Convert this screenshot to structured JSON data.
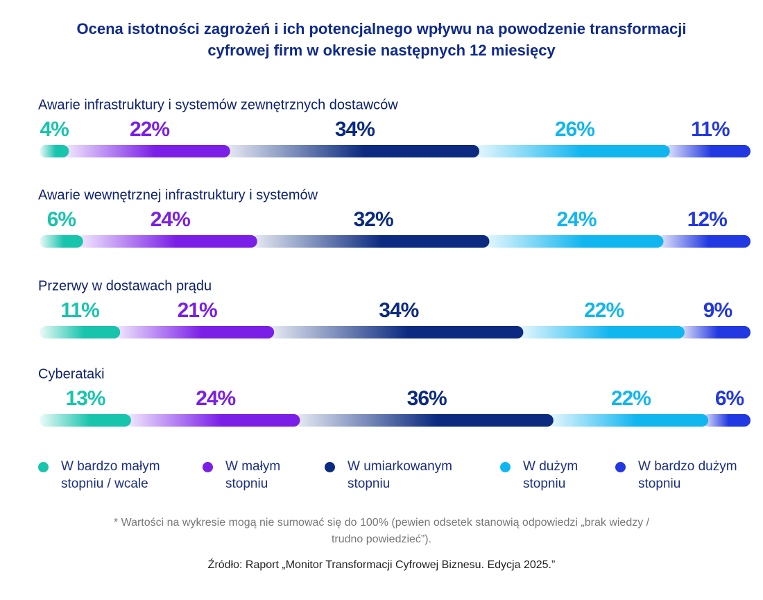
{
  "chart_data": {
    "type": "stacked-bar",
    "title": "Ocena istotności zagrożeń i ich potencjalnego wpływu na powodzenie transformacji cyfrowej firm w okresie następnych 12 miesięcy",
    "categories": [
      "Awarie infrastruktury i systemów zewnętrznych dostawców",
      "Awarie wewnętrznej infrastruktury i systemów",
      "Przerwy w dostawach prądu",
      "Cyberataki"
    ],
    "series": [
      {
        "name": "W bardzo małym stopniu / wcale",
        "color": "#19c4ad",
        "values": [
          4,
          6,
          11,
          13
        ],
        "value_labels": [
          "4%",
          "6%",
          "11%",
          "13%"
        ]
      },
      {
        "name": "W małym stopniu",
        "color": "#7b1fe6",
        "values": [
          22,
          24,
          21,
          24
        ],
        "value_labels": [
          "22%",
          "24%",
          "21%",
          "24%"
        ]
      },
      {
        "name": "W umiarkowanym stopniu",
        "color": "#0b2a80",
        "values": [
          34,
          32,
          34,
          36
        ],
        "value_labels": [
          "34%",
          "32%",
          "34%",
          "36%"
        ]
      },
      {
        "name": "W dużym stopniu",
        "color": "#12b6ef",
        "values": [
          26,
          24,
          22,
          22
        ],
        "value_labels": [
          "26%",
          "24%",
          "22%",
          "22%"
        ]
      },
      {
        "name": "W bardzo dużym stopniu",
        "color": "#2238e0",
        "values": [
          11,
          12,
          9,
          6
        ],
        "value_labels": [
          "11%",
          "12%",
          "9%",
          "6%"
        ]
      }
    ],
    "note": "* Wartości na wykresie mogą nie sumować się do 100% (pewien odsetek stanowią odpowiedzi „brak wiedzy / trudno powiedzieć”).",
    "source": "Źródło: Raport „Monitor Transformacji Cyfrowej Biznesu. Edycja 2025.”"
  }
}
